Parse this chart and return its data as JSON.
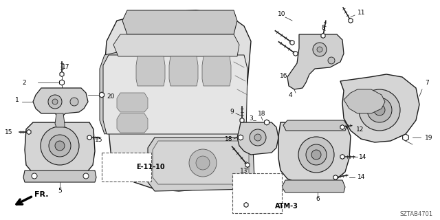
{
  "bg_color": "#ffffff",
  "diagram_id": "SZTAB4701",
  "ref_label_e": "E-11-10",
  "ref_label_atm": "ATM-3",
  "fr_label": "FR.",
  "text_color": "#000000",
  "line_color": "#1a1a1a",
  "gray_color": "#888888",
  "engine_fill": "#e0e0e0",
  "mount_fill": "#d8d8d8",
  "dark_fill": "#b0b0b0",
  "figsize": [
    6.4,
    3.2
  ],
  "dpi": 100
}
